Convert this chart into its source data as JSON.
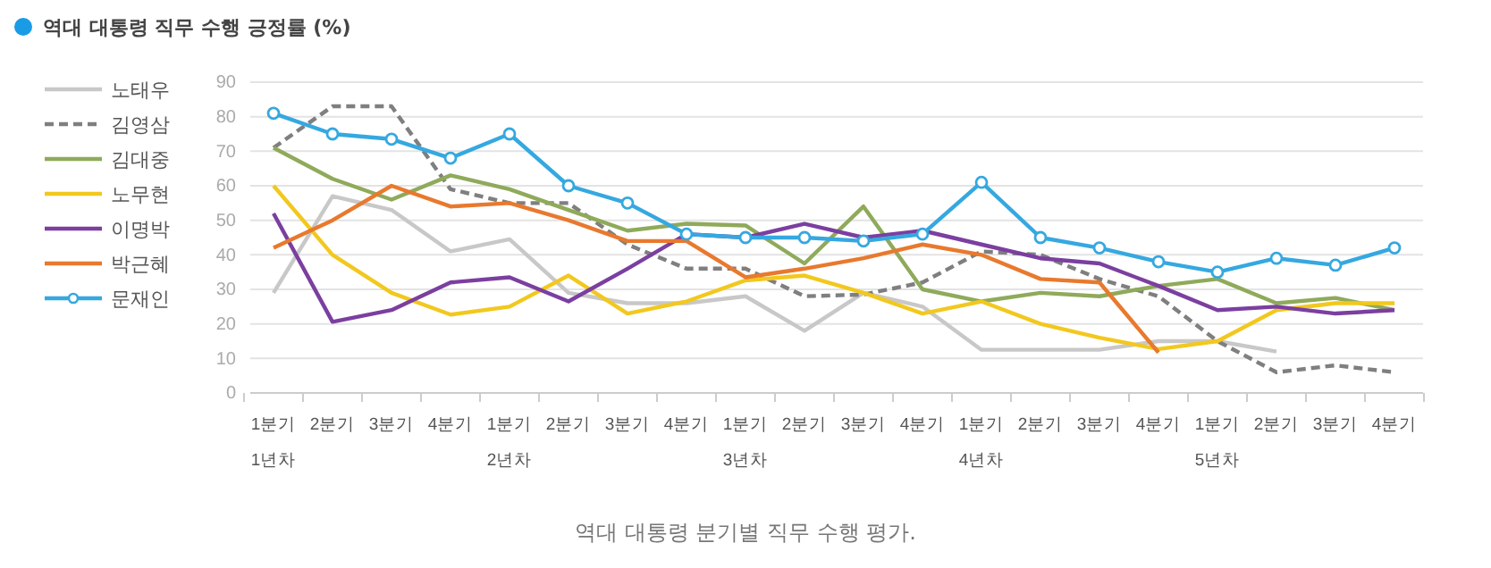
{
  "chart_data": {
    "type": "line",
    "title": "역대 대통령 직무 수행 긍정률 (%)",
    "categories": [
      "1분기\n1년차",
      "2분기",
      "3분기",
      "4분기",
      "1분기\n2년차",
      "2분기",
      "3분기",
      "4분기",
      "1분기\n3년차",
      "2분기",
      "3분기",
      "4분기",
      "1분기\n4년차",
      "2분기",
      "3분기",
      "4분기",
      "1분기\n5년차",
      "2분기",
      "3분기",
      "4분기"
    ],
    "series": [
      {
        "name": "노태우",
        "color": "#c8c8c8",
        "line_style": "solid",
        "marker": "none",
        "values": [
          29,
          57,
          53,
          41,
          44.5,
          29,
          26,
          26,
          28,
          18,
          29,
          25,
          12.5,
          12.5,
          12.5,
          15,
          15,
          12,
          null,
          null
        ]
      },
      {
        "name": "김영삼",
        "color": "#7f7f7f",
        "line_style": "dashed",
        "marker": "none",
        "values": [
          71,
          83,
          83,
          59,
          55,
          55,
          43,
          36,
          36,
          28,
          28.5,
          32,
          41,
          40,
          33,
          28,
          15,
          6,
          8,
          6
        ]
      },
      {
        "name": "김대중",
        "color": "#8faa5a",
        "line_style": "solid",
        "marker": "none",
        "values": [
          71,
          62,
          56,
          63,
          59,
          53,
          47,
          49,
          48.5,
          37.5,
          54,
          30,
          26.5,
          29,
          28,
          31,
          33,
          26,
          27.5,
          24
        ]
      },
      {
        "name": "노무현",
        "color": "#f2c81e",
        "line_style": "solid",
        "marker": "none",
        "values": [
          60,
          40,
          29,
          22.7,
          25,
          34,
          23,
          26.5,
          32.6,
          34,
          29,
          23,
          26.5,
          20,
          16,
          12.7,
          15,
          24,
          26,
          26
        ]
      },
      {
        "name": "이명박",
        "color": "#7b3fa0",
        "line_style": "solid",
        "marker": "none",
        "values": [
          52,
          20.6,
          24,
          32,
          33.5,
          26.5,
          36,
          46,
          45,
          49,
          45,
          47,
          43,
          39,
          37.5,
          31,
          24,
          25,
          23,
          24
        ]
      },
      {
        "name": "박근혜",
        "color": "#e8792e",
        "line_style": "solid",
        "marker": "none",
        "values": [
          42,
          50,
          60,
          54,
          55,
          50,
          44,
          44,
          33.5,
          36,
          39,
          43,
          40,
          33,
          32,
          11.7,
          null,
          null,
          null,
          null
        ]
      },
      {
        "name": "문재인",
        "color": "#35a8e0",
        "line_style": "solid",
        "marker": "circle",
        "values": [
          81,
          75,
          73.5,
          68,
          75,
          60,
          55,
          46,
          45,
          45,
          44,
          46,
          61,
          45,
          42,
          38,
          35,
          39,
          37,
          42
        ]
      }
    ],
    "ylim": [
      0,
      90
    ],
    "yticks": [
      0,
      10,
      20,
      30,
      40,
      50,
      60,
      70,
      80,
      90
    ],
    "grid": "y",
    "legend": "left",
    "annotations": [
      "역대 대통령 분기별 직무 수행 평가."
    ]
  }
}
